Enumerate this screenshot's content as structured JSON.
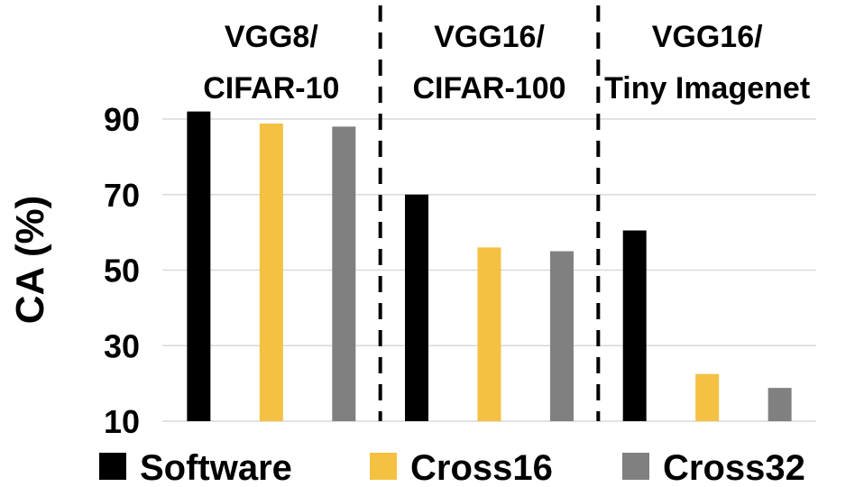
{
  "chart_data": {
    "type": "bar",
    "ylabel": "CA (%)",
    "xlabel": "",
    "ylim": [
      10,
      90
    ],
    "yticks": [
      10,
      30,
      50,
      70,
      90
    ],
    "grid": true,
    "legend_position": "bottom",
    "groups": [
      {
        "line1": "VGG8/",
        "line2": "CIFAR-10"
      },
      {
        "line1": "VGG16/",
        "line2": "CIFAR-100"
      },
      {
        "line1": "VGG16/",
        "line2": "Tiny Imagenet"
      }
    ],
    "series": [
      {
        "name": "Software",
        "color": "#000000",
        "values": [
          92,
          70,
          60.5
        ]
      },
      {
        "name": "Cross16",
        "color": "#F4C142",
        "values": [
          88.8,
          56,
          22.5
        ]
      },
      {
        "name": "Cross32",
        "color": "#808080",
        "values": [
          88,
          55,
          18.8
        ]
      }
    ]
  }
}
